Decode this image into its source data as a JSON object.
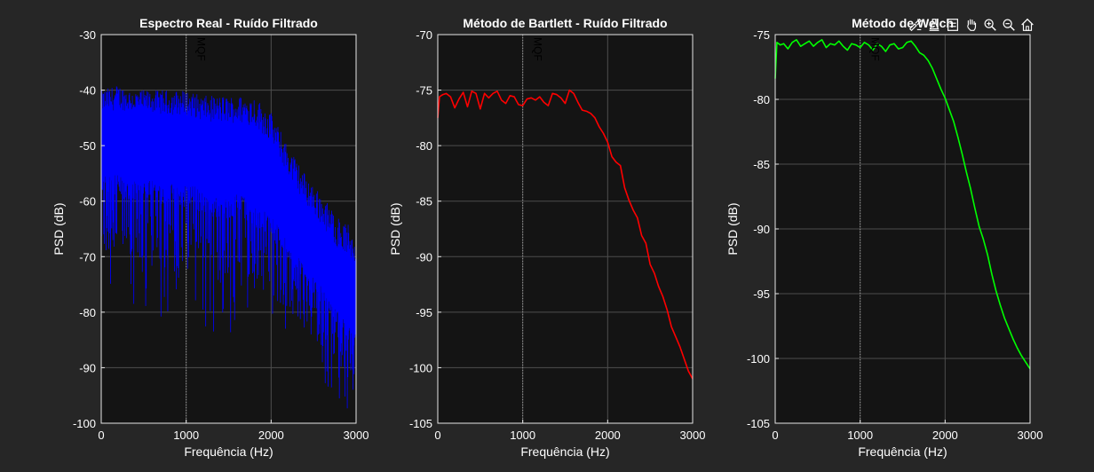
{
  "figure": {
    "background": "#262626",
    "axes_background": "#141414",
    "grid_color": "#4d4d4d",
    "spine_color": "#e6e6e6"
  },
  "toolbar": [
    "brush-icon",
    "datatip-icon",
    "legend-icon",
    "pan-icon",
    "zoom-in-icon",
    "zoom-out-icon",
    "home-icon"
  ],
  "chart_data": [
    {
      "type": "line",
      "title": "Espectro Real - Ruído Filtrado",
      "xlabel": "Frequência (Hz)",
      "ylabel": "PSD (dB)",
      "xlim": [
        0,
        3000
      ],
      "ylim": [
        -100,
        -30
      ],
      "xticks": [
        0,
        1000,
        2000,
        3000
      ],
      "yticks": [
        -100,
        -90,
        -80,
        -70,
        -60,
        -50,
        -40,
        -30
      ],
      "grid": true,
      "color": "#0000ff",
      "annotation": {
        "text": "MQF",
        "x": 1000
      },
      "series": [
        {
          "noisy": true,
          "x_envelope": [
            0,
            200,
            400,
            600,
            800,
            1000,
            1200,
            1400,
            1600,
            1800,
            2000,
            2200,
            2400,
            2600,
            2800,
            3000
          ],
          "upper": [
            -40,
            -39,
            -40,
            -40,
            -40,
            -40,
            -41,
            -41,
            -41,
            -41,
            -44,
            -50,
            -55,
            -59,
            -63,
            -65
          ],
          "lower": [
            -78,
            -79,
            -80,
            -80,
            -82,
            -82,
            -84,
            -84,
            -84,
            -86,
            -86,
            -88,
            -90,
            -93,
            -96,
            -99
          ],
          "center": [
            -49,
            -49,
            -49,
            -49,
            -50,
            -50,
            -51,
            -52,
            -52,
            -53,
            -56,
            -62,
            -67,
            -71,
            -76,
            -80
          ]
        }
      ]
    },
    {
      "type": "line",
      "title": "Método de Bartlett - Ruído Filtrado",
      "xlabel": "Frequência (Hz)",
      "ylabel": "PSD (dB)",
      "xlim": [
        0,
        3000
      ],
      "ylim": [
        -105,
        -70
      ],
      "xticks": [
        0,
        1000,
        2000,
        3000
      ],
      "yticks": [
        -105,
        -100,
        -95,
        -90,
        -85,
        -80,
        -75,
        -70
      ],
      "grid": true,
      "color": "#ff0000",
      "annotation": {
        "text": "MQF",
        "x": 1000
      },
      "series": [
        {
          "x": [
            0,
            20,
            60,
            100,
            150,
            200,
            250,
            300,
            350,
            400,
            450,
            500,
            550,
            600,
            650,
            700,
            750,
            800,
            850,
            900,
            950,
            1000,
            1050,
            1100,
            1150,
            1200,
            1250,
            1300,
            1350,
            1400,
            1450,
            1500,
            1550,
            1600,
            1650,
            1700,
            1750,
            1800,
            1850,
            1900,
            1950,
            2000,
            2050,
            2100,
            2150,
            2200,
            2250,
            2300,
            2350,
            2400,
            2450,
            2500,
            2550,
            2600,
            2650,
            2700,
            2750,
            2800,
            2850,
            2900,
            2950,
            3000
          ],
          "y": [
            -77.5,
            -75.6,
            -75.4,
            -75.3,
            -75.6,
            -76.6,
            -75.8,
            -75.2,
            -76.5,
            -75.1,
            -75.3,
            -76.7,
            -75.3,
            -75.7,
            -75.3,
            -75.1,
            -75.9,
            -76.2,
            -75.5,
            -75.6,
            -76.3,
            -76.4,
            -75.8,
            -75.7,
            -75.9,
            -75.6,
            -76.1,
            -76.4,
            -75.3,
            -75.4,
            -75.7,
            -76.2,
            -75.0,
            -75.3,
            -76.1,
            -76.8,
            -76.9,
            -77.1,
            -77.5,
            -78.3,
            -78.9,
            -79.7,
            -81.0,
            -81.5,
            -81.8,
            -83.8,
            -84.9,
            -85.8,
            -86.5,
            -88.1,
            -88.8,
            -90.7,
            -91.5,
            -92.7,
            -93.6,
            -94.8,
            -96.3,
            -97.2,
            -98.1,
            -99.2,
            -100.3,
            -101.0
          ]
        }
      ]
    },
    {
      "type": "line",
      "title": "Método de Welch",
      "xlabel": "Frequência (Hz)",
      "ylabel": "PSD (dB)",
      "xlim": [
        0,
        3000
      ],
      "ylim": [
        -105,
        -75
      ],
      "xticks": [
        0,
        1000,
        2000,
        3000
      ],
      "yticks": [
        -105,
        -100,
        -95,
        -90,
        -85,
        -80,
        -75
      ],
      "grid": true,
      "color": "#00ff00",
      "annotation": {
        "text": "MQF",
        "x": 1000
      },
      "series": [
        {
          "x": [
            0,
            20,
            60,
            100,
            150,
            200,
            250,
            300,
            350,
            400,
            450,
            500,
            550,
            600,
            650,
            700,
            750,
            800,
            850,
            900,
            950,
            1000,
            1050,
            1100,
            1150,
            1200,
            1250,
            1300,
            1350,
            1400,
            1450,
            1500,
            1550,
            1600,
            1650,
            1700,
            1750,
            1800,
            1850,
            1900,
            1950,
            2000,
            2050,
            2100,
            2150,
            2200,
            2250,
            2300,
            2350,
            2400,
            2450,
            2500,
            2550,
            2600,
            2650,
            2700,
            2750,
            2800,
            2850,
            2900,
            2950,
            3000
          ],
          "y": [
            -78.4,
            -75.6,
            -75.8,
            -75.7,
            -76.1,
            -75.6,
            -75.4,
            -75.9,
            -75.7,
            -75.5,
            -75.9,
            -75.6,
            -75.4,
            -76.0,
            -75.7,
            -75.8,
            -75.5,
            -75.9,
            -76.2,
            -75.7,
            -75.8,
            -76.0,
            -75.6,
            -75.8,
            -76.2,
            -75.7,
            -75.9,
            -76.3,
            -75.8,
            -75.7,
            -76.1,
            -76.0,
            -75.6,
            -75.5,
            -75.9,
            -76.4,
            -76.6,
            -77.0,
            -77.6,
            -78.4,
            -79.2,
            -79.9,
            -80.8,
            -81.7,
            -82.9,
            -84.2,
            -85.6,
            -86.9,
            -88.4,
            -89.8,
            -90.8,
            -92.0,
            -93.5,
            -94.8,
            -95.9,
            -96.9,
            -97.7,
            -98.5,
            -99.2,
            -99.8,
            -100.3,
            -100.8
          ]
        }
      ]
    }
  ]
}
